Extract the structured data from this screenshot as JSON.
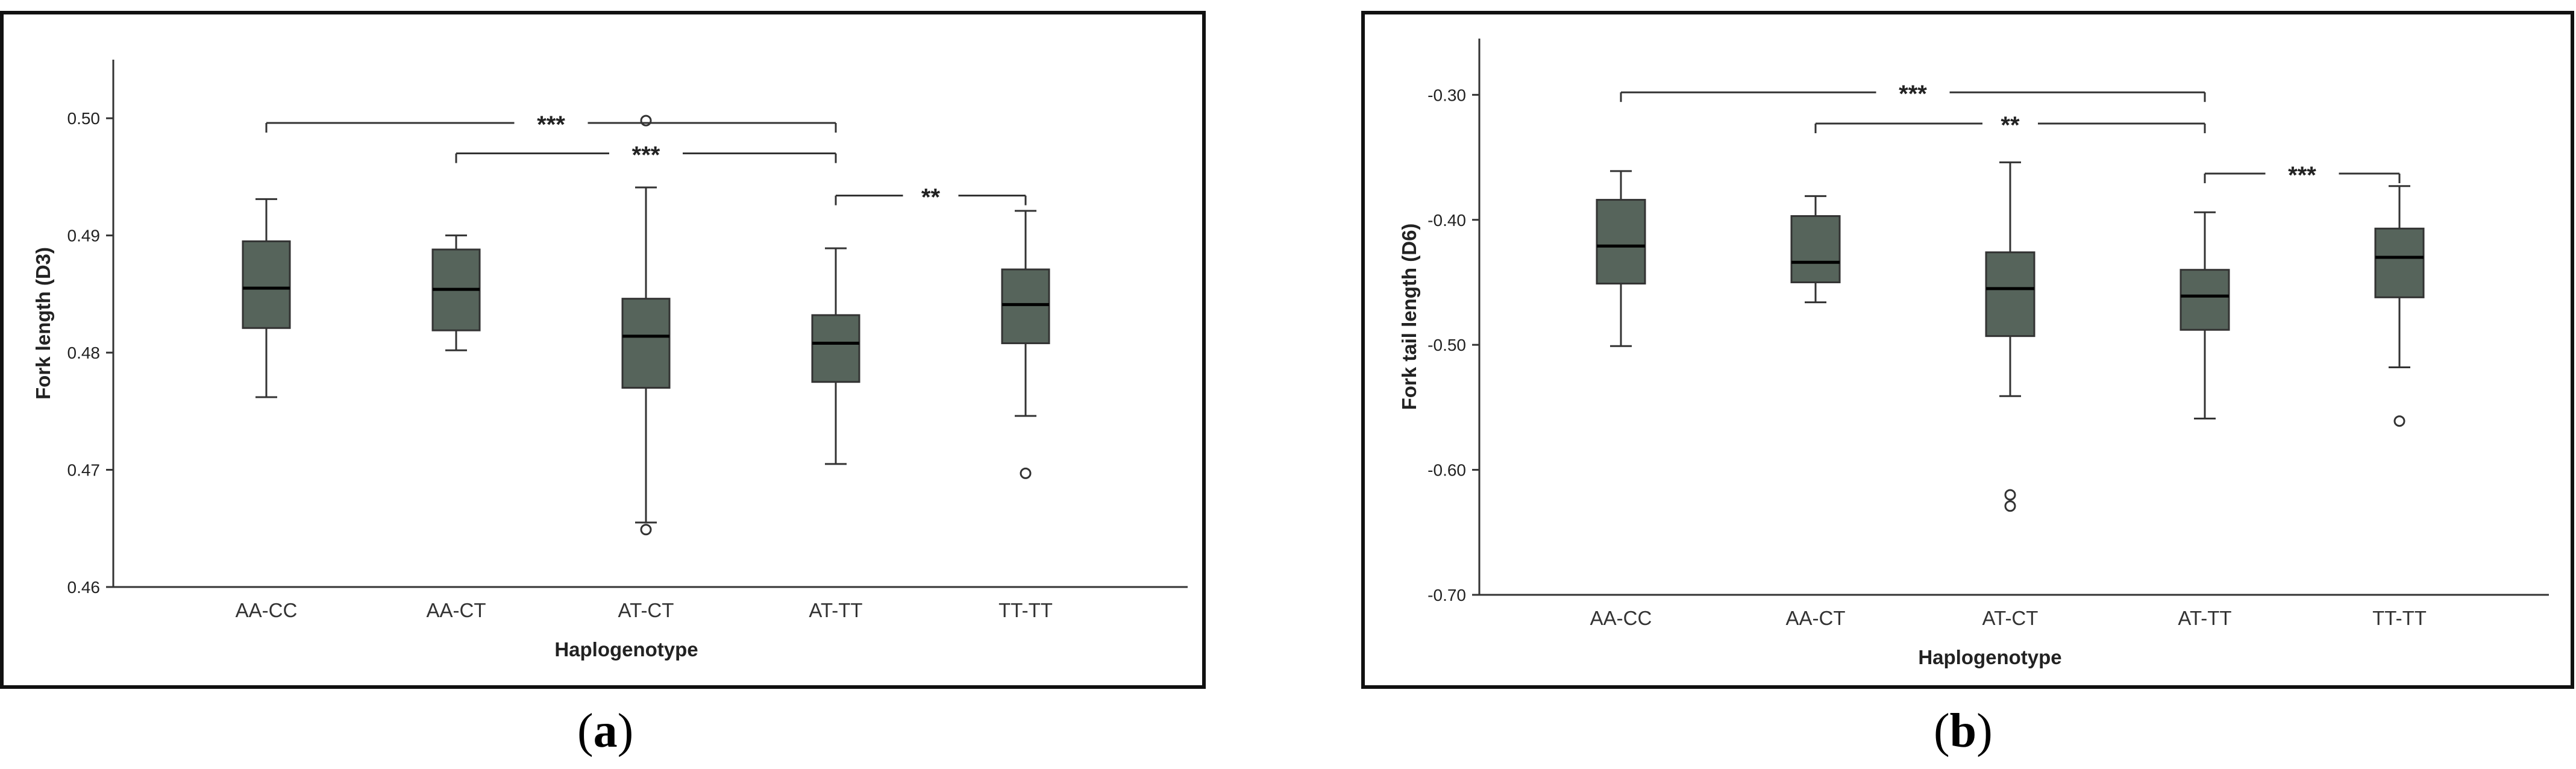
{
  "figure": {
    "caption_a": "a",
    "caption_b": "b"
  },
  "style": {
    "box_fill": "#56645b",
    "line": "#333333"
  },
  "chart_data": [
    {
      "id": "a",
      "type": "box",
      "xlabel": "Haplogenotype",
      "ylabel": "Fork length (D3)",
      "ylim": [
        0.46,
        0.505
      ],
      "yticks": [
        0.46,
        0.47,
        0.48,
        0.49,
        0.5
      ],
      "ytick_labels": [
        "0.46",
        "0.47",
        "0.48",
        "0.49",
        "0.50"
      ],
      "categories": [
        "AA-CC",
        "AA-CT",
        "AT-CT",
        "AT-TT",
        "TT-TT"
      ],
      "boxes": [
        {
          "whislo": 0.4762,
          "q1": 0.4821,
          "med": 0.4855,
          "q3": 0.4895,
          "whishi": 0.4931,
          "outliers": []
        },
        {
          "whislo": 0.4802,
          "q1": 0.4819,
          "med": 0.4854,
          "q3": 0.4888,
          "whishi": 0.49,
          "outliers": []
        },
        {
          "whislo": 0.4655,
          "q1": 0.477,
          "med": 0.4814,
          "q3": 0.4846,
          "whishi": 0.4941,
          "outliers": [
            0.4649,
            0.4998
          ]
        },
        {
          "whislo": 0.4705,
          "q1": 0.4775,
          "med": 0.4808,
          "q3": 0.4832,
          "whishi": 0.4889,
          "outliers": []
        },
        {
          "whislo": 0.4746,
          "q1": 0.4808,
          "med": 0.4841,
          "q3": 0.4871,
          "whishi": 0.4921,
          "outliers": [
            0.4697
          ]
        }
      ],
      "significance": [
        {
          "from": 0,
          "to": 3,
          "y": 0.4996,
          "label": "***"
        },
        {
          "from": 1,
          "to": 3,
          "y": 0.497,
          "label": "***"
        },
        {
          "from": 3,
          "to": 4,
          "y": 0.4934,
          "label": "**"
        }
      ]
    },
    {
      "id": "b",
      "type": "box",
      "xlabel": "Haplogenotype",
      "ylabel": "Fork tail length (D6)",
      "ylim": [
        -0.7,
        -0.255
      ],
      "yticks": [
        -0.3,
        -0.4,
        -0.5,
        -0.6,
        -0.7
      ],
      "ytick_labels": [
        "-0.30",
        "-0.40",
        "-0.50",
        "-0.60",
        "-0.70"
      ],
      "categories": [
        "AA-CC",
        "AA-CT",
        "AT-CT",
        "AT-TT",
        "TT-TT"
      ],
      "boxes": [
        {
          "whislo": -0.501,
          "q1": -0.451,
          "med": -0.421,
          "q3": -0.384,
          "whishi": -0.361,
          "outliers": []
        },
        {
          "whislo": -0.466,
          "q1": -0.45,
          "med": -0.434,
          "q3": -0.397,
          "whishi": -0.381,
          "outliers": []
        },
        {
          "whislo": -0.541,
          "q1": -0.493,
          "med": -0.455,
          "q3": -0.426,
          "whishi": -0.354,
          "outliers": [
            -0.62,
            -0.629
          ]
        },
        {
          "whislo": -0.559,
          "q1": -0.488,
          "med": -0.461,
          "q3": -0.44,
          "whishi": -0.394,
          "outliers": []
        },
        {
          "whislo": -0.518,
          "q1": -0.462,
          "med": -0.43,
          "q3": -0.407,
          "whishi": -0.373,
          "outliers": [
            -0.561
          ]
        }
      ],
      "significance": [
        {
          "from": 0,
          "to": 3,
          "y": -0.298,
          "label": "***"
        },
        {
          "from": 1,
          "to": 3,
          "y": -0.323,
          "label": "**"
        },
        {
          "from": 3,
          "to": 4,
          "y": -0.363,
          "label": "***"
        }
      ]
    }
  ]
}
